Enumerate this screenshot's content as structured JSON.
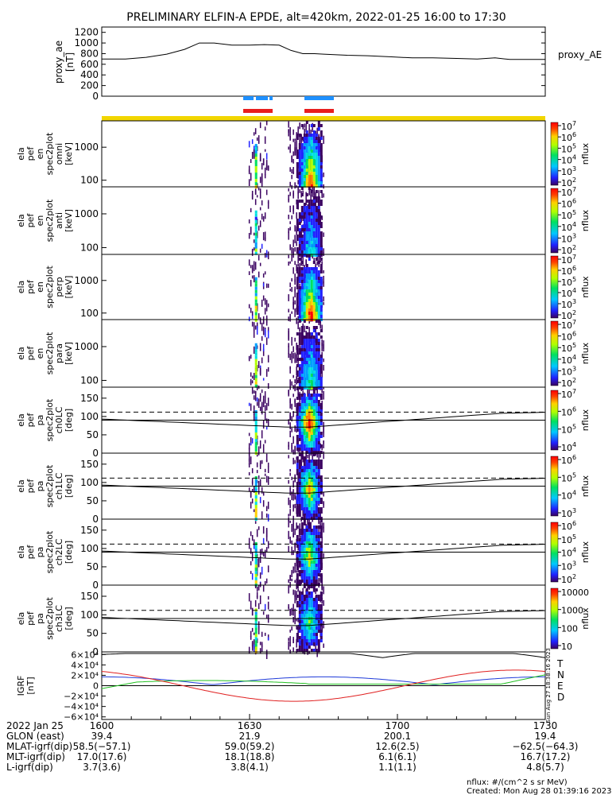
{
  "title": "PRELIMINARY ELFIN-A EPDE, alt=420km, 2022-01-25 16:00 to 17:30",
  "chart_data": [
    {
      "type": "line",
      "panel": "proxy_ae",
      "ylabel_lines": [
        "proxy_ae",
        "[nT]"
      ],
      "yticks": [
        0,
        200,
        400,
        600,
        800,
        1000,
        1200
      ],
      "ylim": [
        0,
        1300
      ],
      "xlim": [
        16.0,
        17.5
      ],
      "series": [
        {
          "name": "proxy_AE",
          "x": [
            16.0,
            16.08,
            16.15,
            16.22,
            16.28,
            16.33,
            16.38,
            16.44,
            16.5,
            16.55,
            16.6,
            16.64,
            16.68,
            16.72,
            16.75,
            16.83,
            16.9,
            16.98,
            17.05,
            17.12,
            17.2,
            17.27,
            17.33,
            17.38,
            17.45,
            17.5
          ],
          "y": [
            700,
            700,
            730,
            790,
            880,
            1000,
            1000,
            960,
            960,
            970,
            960,
            860,
            800,
            800,
            790,
            770,
            760,
            740,
            720,
            720,
            710,
            700,
            720,
            690,
            690,
            690
          ]
        }
      ]
    },
    {
      "type": "heatmap",
      "panel": "en_omni",
      "ylabel_lines": [
        "ela",
        "pef",
        "en",
        "spec2plot",
        "omni",
        "[keV]"
      ],
      "yticks": [
        100,
        1000
      ],
      "yscale": "log",
      "ylim": [
        63,
        6300
      ],
      "colorbar": {
        "label": "nflux",
        "ticks": [
          "10^2",
          "10^3",
          "10^4",
          "10^5",
          "10^6",
          "10^7"
        ]
      }
    },
    {
      "type": "heatmap",
      "panel": "en_anti",
      "ylabel_lines": [
        "ela",
        "pef",
        "en",
        "spec2plot",
        "anti",
        "[keV]"
      ],
      "yticks": [
        100,
        1000
      ],
      "yscale": "log",
      "ylim": [
        63,
        6300
      ],
      "colorbar": {
        "label": "nflux",
        "ticks": [
          "10^2",
          "10^3",
          "10^4",
          "10^5",
          "10^6",
          "10^7"
        ]
      }
    },
    {
      "type": "heatmap",
      "panel": "en_perp",
      "ylabel_lines": [
        "ela",
        "pef",
        "en",
        "spec2plot",
        "perp",
        "[keV]"
      ],
      "yticks": [
        100,
        1000
      ],
      "yscale": "log",
      "ylim": [
        63,
        6300
      ],
      "colorbar": {
        "label": "nflux",
        "ticks": [
          "10^2",
          "10^3",
          "10^4",
          "10^5",
          "10^6",
          "10^7"
        ]
      }
    },
    {
      "type": "heatmap",
      "panel": "en_para",
      "ylabel_lines": [
        "ela",
        "pef",
        "en",
        "spec2plot",
        "para",
        "[keV]"
      ],
      "yticks": [
        100,
        1000
      ],
      "yscale": "log",
      "ylim": [
        63,
        6300
      ],
      "colorbar": {
        "label": "nflux",
        "ticks": [
          "10^2",
          "10^3",
          "10^4",
          "10^5",
          "10^6",
          "10^7"
        ]
      }
    },
    {
      "type": "heatmap",
      "panel": "pa_ch0",
      "ylabel_lines": [
        "ela",
        "pef",
        "pa",
        "spec2plot",
        "ch0LC",
        "[deg]"
      ],
      "yticks": [
        0,
        50,
        100,
        150
      ],
      "ylim": [
        0,
        180
      ],
      "colorbar": {
        "label": "nflux",
        "ticks": [
          "10^4",
          "10^5",
          "10^6",
          "10^7"
        ]
      }
    },
    {
      "type": "heatmap",
      "panel": "pa_ch1",
      "ylabel_lines": [
        "ela",
        "pef",
        "pa",
        "spec2plot",
        "ch1LC",
        "[deg]"
      ],
      "yticks": [
        0,
        50,
        100,
        150
      ],
      "ylim": [
        0,
        180
      ],
      "colorbar": {
        "label": "nflux",
        "ticks": [
          "10^3",
          "10^4",
          "10^5",
          "10^6"
        ]
      }
    },
    {
      "type": "heatmap",
      "panel": "pa_ch2",
      "ylabel_lines": [
        "ela",
        "pef",
        "pa",
        "spec2plot",
        "ch2LC",
        "[deg]"
      ],
      "yticks": [
        0,
        50,
        100,
        150
      ],
      "ylim": [
        0,
        180
      ],
      "colorbar": {
        "label": "nflux",
        "ticks": [
          "10^2",
          "10^3",
          "10^4",
          "10^5",
          "10^6"
        ]
      }
    },
    {
      "type": "heatmap",
      "panel": "pa_ch3",
      "ylabel_lines": [
        "ela",
        "pef",
        "pa",
        "spec2plot",
        "ch3LC",
        "[deg]"
      ],
      "yticks": [
        0,
        50,
        100,
        150
      ],
      "ylim": [
        0,
        180
      ],
      "colorbar": {
        "label": "nflux",
        "ticks": [
          "10",
          "100",
          "1000",
          "10000"
        ]
      }
    },
    {
      "type": "line",
      "panel": "igrf",
      "ylabel_lines": [
        "IGRF",
        "[nT]"
      ],
      "ytick_labels": [
        "−6×10⁴",
        "−4×10⁴",
        "−2×10⁴",
        "0",
        "2×10⁴",
        "4×10⁴",
        "6×10⁴"
      ],
      "ylim": [
        -65000,
        65000
      ],
      "series": [
        {
          "name": "T",
          "color": "#000000"
        },
        {
          "name": "N",
          "color": "#1f3bd9"
        },
        {
          "name": "E",
          "color": "#22c022"
        },
        {
          "name": "D",
          "color": "#e02020"
        }
      ]
    }
  ],
  "xaxis": {
    "row_labels": [
      "2022 Jan 25",
      "GLON (east)",
      "MLAT-igrf(dip)",
      "MLT-igrf(dip)",
      "L-igrf(dip)"
    ],
    "columns": [
      {
        "hhmm": "1600",
        "vals": [
          "39.4",
          "58.5(−57.1)",
          "17.0(17.6)",
          "3.7(3.6)"
        ]
      },
      {
        "hhmm": "1630",
        "vals": [
          "21.9",
          "59.0(59.2)",
          "18.1(18.8)",
          "3.8(4.1)"
        ]
      },
      {
        "hhmm": "1700",
        "vals": [
          "200.1",
          "12.6(2.5)",
          "6.1(6.1)",
          "1.1(1.1)"
        ]
      },
      {
        "hhmm": "1730",
        "vals": [
          "19.4",
          "−62.5(−64.3)",
          "16.7(17.2)",
          "4.8(5.7)"
        ]
      }
    ]
  },
  "bars": {
    "colors": [
      "#1e90ff",
      "#e81e1e",
      "#f2d600"
    ]
  },
  "legend_right_ae": "proxy_AE",
  "footer": {
    "units": "nflux: #/(cm^2 s sr MeV)",
    "created": "Created: Mon Aug 28 01:39:16 2023",
    "side_stamp": "Sun Aug 27 18:38:16 2023"
  }
}
